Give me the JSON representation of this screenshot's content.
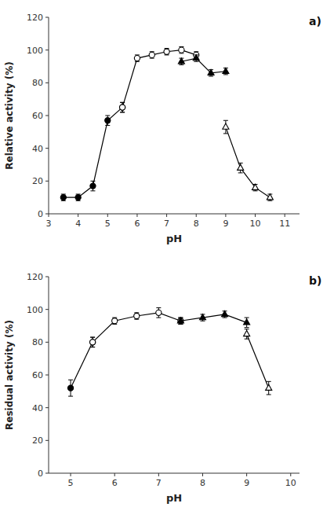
{
  "chart_data": [
    {
      "type": "line",
      "title": "a)",
      "x_label": "pH",
      "y_label": "Relative activity (%)",
      "xlim": [
        3.0,
        11.5
      ],
      "ylim": [
        0,
        120
      ],
      "xticks": [
        3,
        4,
        5,
        6,
        7,
        8,
        9,
        10,
        11
      ],
      "yticks": [
        0,
        20,
        40,
        60,
        80,
        100,
        120
      ],
      "grid": false,
      "series": [
        {
          "marker": "filled-circle",
          "color": "black",
          "line_style": "solid",
          "x": [
            3.5,
            4.0,
            4.5,
            5.0,
            5.5
          ],
          "values": [
            10,
            10,
            17,
            57,
            65
          ],
          "errors": [
            2,
            2,
            3,
            3,
            3
          ]
        },
        {
          "marker": "open-circle",
          "color": "black",
          "line_style": "solid",
          "x": [
            5.5,
            6.0,
            6.5,
            7.0,
            7.5,
            8.0
          ],
          "values": [
            65,
            95,
            97,
            99,
            100,
            97
          ],
          "errors": [
            3,
            2,
            2,
            2,
            2,
            2
          ]
        },
        {
          "marker": "filled-triangle",
          "color": "black",
          "line_style": "solid",
          "x": [
            7.5,
            8.0,
            8.5,
            9.0
          ],
          "values": [
            93,
            95,
            86,
            87
          ],
          "errors": [
            2,
            2,
            2,
            2
          ]
        },
        {
          "marker": "open-triangle",
          "color": "black",
          "line_style": "solid",
          "x": [
            9.0,
            9.5,
            10.0,
            10.5
          ],
          "values": [
            53,
            28,
            16,
            10
          ],
          "errors": [
            4,
            3,
            2,
            2
          ]
        }
      ]
    },
    {
      "type": "line",
      "title": "b)",
      "x_label": "pH",
      "y_label": "Residual activity (%)",
      "xlim": [
        4.5,
        10.2
      ],
      "ylim": [
        0,
        120
      ],
      "xticks": [
        5,
        6,
        7,
        8,
        9,
        10
      ],
      "yticks": [
        0,
        20,
        40,
        60,
        80,
        100,
        120
      ],
      "grid": false,
      "series": [
        {
          "marker": "filled-circle",
          "color": "black",
          "line_style": "solid",
          "x": [
            5.0,
            5.5
          ],
          "values": [
            52,
            80
          ],
          "errors": [
            5,
            3
          ]
        },
        {
          "marker": "open-circle",
          "color": "black",
          "line_style": "solid",
          "x": [
            5.5,
            6.0,
            6.5,
            7.0,
            7.5
          ],
          "values": [
            80,
            93,
            96,
            98,
            93
          ],
          "errors": [
            3,
            2,
            2,
            3,
            2
          ]
        },
        {
          "marker": "filled-triangle",
          "color": "black",
          "line_style": "solid",
          "x": [
            7.5,
            8.0,
            8.5,
            9.0
          ],
          "values": [
            93,
            95,
            97,
            92
          ],
          "errors": [
            2,
            2,
            2,
            3
          ]
        },
        {
          "marker": "open-triangle",
          "color": "black",
          "line_style": "solid",
          "x": [
            9.0,
            9.5
          ],
          "values": [
            85,
            52
          ],
          "errors": [
            3,
            4
          ]
        }
      ]
    }
  ]
}
